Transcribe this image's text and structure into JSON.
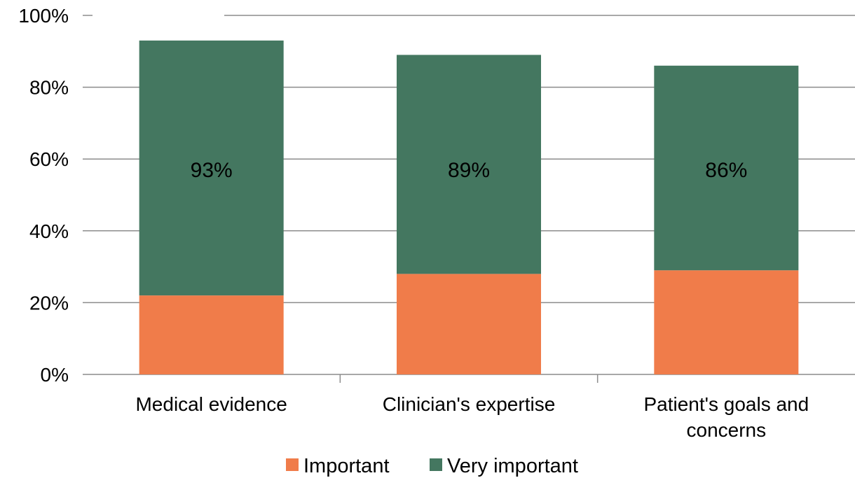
{
  "chart_data": {
    "type": "bar",
    "stacked": true,
    "categories": [
      "Medical evidence",
      "Clinician's expertise",
      "Patient's goals and concerns"
    ],
    "category_label_lines": [
      [
        "Medical evidence"
      ],
      [
        "Clinician's expertise"
      ],
      [
        "Patient's goals and",
        "concerns"
      ]
    ],
    "series": [
      {
        "name": "Important",
        "values": [
          22,
          28,
          29
        ],
        "color": "#f07c4a"
      },
      {
        "name": "Very important",
        "values": [
          71,
          61,
          57
        ],
        "color": "#447760"
      }
    ],
    "totals": [
      93,
      89,
      86
    ],
    "data_labels": [
      "93%",
      "89%",
      "86%"
    ],
    "y_ticks": [
      "0%",
      "20%",
      "40%",
      "60%",
      "80%",
      "100%"
    ],
    "ylim": [
      0,
      100
    ],
    "grid": true,
    "legend_position": "bottom",
    "title": "",
    "xlabel": "",
    "ylabel": ""
  }
}
